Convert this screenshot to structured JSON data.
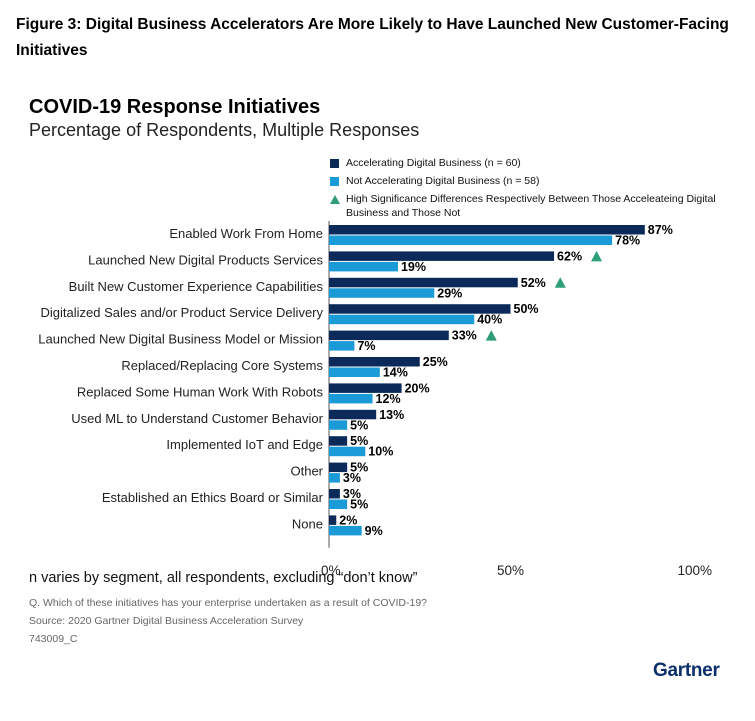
{
  "figure_title": "Figure 3: Digital Business Accelerators Are More Likely to Have Launched New Customer-Facing Initiatives",
  "chart_data": {
    "type": "bar",
    "orientation": "horizontal",
    "title": "COVID-19 Response Initiatives",
    "subtitle": "Percentage of Respondents, Multiple Responses",
    "categories": [
      "Enabled Work From Home",
      "Launched New Digital Products Services",
      "Built New Customer Experience Capabilities",
      "Digitalized Sales and/or Product Service Delivery",
      "Launched New Digital Business Model or Mission",
      "Replaced/Replacing Core Systems",
      "Replaced Some Human Work With Robots",
      "Used ML to Understand Customer Behavior",
      "Implemented IoT and Edge",
      "Other",
      "Established an Ethics Board or Similar",
      "None"
    ],
    "series": [
      {
        "name": "Accelerating Digital Business (n = 60)",
        "color": "#0b2a5a",
        "values": [
          87,
          62,
          52,
          50,
          33,
          25,
          20,
          13,
          5,
          5,
          3,
          2
        ]
      },
      {
        "name": "Not Accelerating Digital Business (n = 58)",
        "color": "#1a9ad6",
        "values": [
          78,
          19,
          29,
          40,
          7,
          14,
          12,
          5,
          10,
          3,
          5,
          9
        ]
      }
    ],
    "significance": {
      "label": "High Significance Differences Respectively Between Those Acceleateing Digital Business and Those Not",
      "color": "#2e9d7a",
      "flags": [
        false,
        true,
        true,
        false,
        true,
        false,
        false,
        false,
        false,
        false,
        false,
        false
      ]
    },
    "xlim": [
      0,
      100
    ],
    "xticks": [
      "0%",
      "50%",
      "100%"
    ],
    "value_suffix": "%"
  },
  "footer": {
    "note": "n varies by segment, all respondents, excluding “don’t know”",
    "question": "Q. Which of these initiatives has your enterprise undertaken as a result of COVID-19?",
    "source": "Source: 2020 Gartner Digital Business Acceleration Survey",
    "code": "743009_C",
    "logo": "Gartner"
  }
}
